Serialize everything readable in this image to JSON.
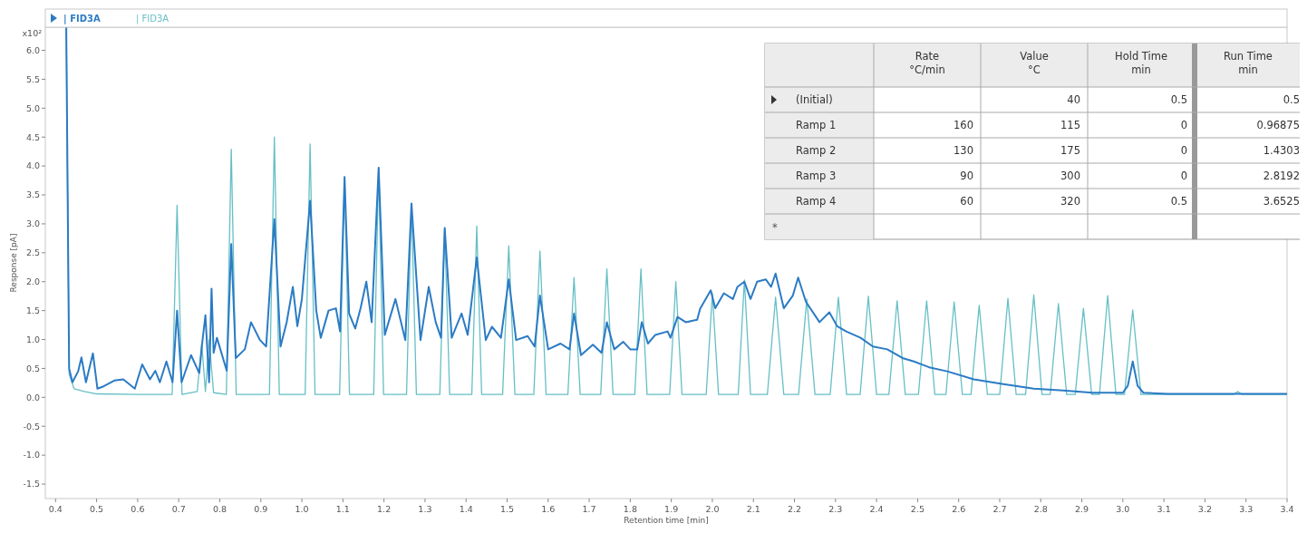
{
  "chart_data": [
    {
      "type": "line",
      "xlabel": "Retention time [min]",
      "ylabel": "Response [pA]",
      "annotations": [
        "x10²"
      ],
      "xlim": [
        0.375,
        3.4
      ],
      "ylim": [
        -1.75,
        6.4
      ],
      "xticks": [
        0.4,
        0.5,
        0.6,
        0.7,
        0.8,
        0.9,
        {
          "value": 1,
          "label": "1.0"
        },
        1.1,
        1.2,
        1.3,
        1.4,
        1.5,
        1.6,
        1.7,
        1.8,
        1.9,
        {
          "value": 2,
          "label": "2.0"
        },
        2.1,
        2.2,
        2.3,
        2.4,
        2.5,
        2.6,
        2.7,
        2.8,
        2.9,
        {
          "value": 3,
          "label": "3.0"
        },
        3.1,
        3.2,
        3.3,
        3.4
      ],
      "yticks": [
        {
          "value": -1.5,
          "label": "-1.5"
        },
        {
          "value": -1,
          "label": "-1.0"
        },
        {
          "value": -0.5,
          "label": "-0.5"
        },
        {
          "value": 0,
          "label": "0.0"
        },
        0.5,
        {
          "value": 1,
          "label": "1.0"
        },
        1.5,
        {
          "value": 2,
          "label": "2.0"
        },
        2.5,
        {
          "value": 3,
          "label": "3.0"
        },
        3.5,
        {
          "value": 4,
          "label": "4.0"
        },
        4.5,
        {
          "value": 5,
          "label": "5.0"
        },
        5.5,
        {
          "value": 6,
          "label": "6.0"
        }
      ],
      "grid": false,
      "line_style": "solid",
      "series": [
        {
          "name": "| FID3A",
          "color": "#2b7bc4",
          "x": [
            0.426,
            0.433,
            0.441,
            0.455,
            0.463,
            0.474,
            0.491,
            0.502,
            0.517,
            0.543,
            0.565,
            0.593,
            0.611,
            0.63,
            0.643,
            0.654,
            0.67,
            0.685,
            0.696,
            0.707,
            0.73,
            0.75,
            0.757,
            0.765,
            0.774,
            0.78,
            0.785,
            0.793,
            0.817,
            0.828,
            0.839,
            0.861,
            0.876,
            0.898,
            0.913,
            0.933,
            0.948,
            0.963,
            0.978,
            0.989,
            1.0,
            1.02,
            1.035,
            1.046,
            1.065,
            1.083,
            1.093,
            1.104,
            1.115,
            1.13,
            1.143,
            1.157,
            1.17,
            1.187,
            1.202,
            1.228,
            1.252,
            1.267,
            1.289,
            1.309,
            1.326,
            1.339,
            1.348,
            1.365,
            1.389,
            1.404,
            1.426,
            1.448,
            1.463,
            1.485,
            1.504,
            1.522,
            1.55,
            1.567,
            1.58,
            1.6,
            1.63,
            1.652,
            1.663,
            1.68,
            1.709,
            1.73,
            1.743,
            1.761,
            1.783,
            1.8,
            1.817,
            1.828,
            1.843,
            1.861,
            1.891,
            1.898,
            1.915,
            1.935,
            1.963,
            1.97,
            1.996,
            2.007,
            2.028,
            2.05,
            2.061,
            2.078,
            2.093,
            2.109,
            2.13,
            2.143,
            2.154,
            2.174,
            2.196,
            2.209,
            2.228,
            2.261,
            2.285,
            2.304,
            2.326,
            2.361,
            2.391,
            2.426,
            2.463,
            2.491,
            2.528,
            2.572,
            2.637,
            2.709,
            2.783,
            2.854,
            2.926,
            3.0,
            3.012,
            3.024,
            3.036,
            3.05,
            3.109,
            3.252,
            3.4
          ],
          "values": [
            6.4,
            0.5,
            0.26,
            0.45,
            0.69,
            0.26,
            0.76,
            0.15,
            0.19,
            0.29,
            0.31,
            0.15,
            0.57,
            0.31,
            0.46,
            0.26,
            0.62,
            0.26,
            1.5,
            0.26,
            0.73,
            0.42,
            0.93,
            1.42,
            0.26,
            1.88,
            0.77,
            1.03,
            0.46,
            2.65,
            0.68,
            0.83,
            1.3,
            0.99,
            0.88,
            3.08,
            0.88,
            1.3,
            1.91,
            1.23,
            1.7,
            3.4,
            1.5,
            1.03,
            1.5,
            1.54,
            1.14,
            3.81,
            1.45,
            1.19,
            1.54,
            2.0,
            1.3,
            3.97,
            1.08,
            1.7,
            0.99,
            3.35,
            0.99,
            1.91,
            1.3,
            1.03,
            2.93,
            1.03,
            1.45,
            1.08,
            2.42,
            0.99,
            1.22,
            1.03,
            2.04,
            0.99,
            1.06,
            0.88,
            1.76,
            0.83,
            0.93,
            0.83,
            1.45,
            0.73,
            0.91,
            0.77,
            1.3,
            0.83,
            0.96,
            0.83,
            0.83,
            1.3,
            0.93,
            1.08,
            1.14,
            1.03,
            1.39,
            1.3,
            1.34,
            1.53,
            1.85,
            1.54,
            1.8,
            1.7,
            1.91,
            2.0,
            1.7,
            2.0,
            2.04,
            1.91,
            2.14,
            1.54,
            1.76,
            2.07,
            1.65,
            1.3,
            1.47,
            1.23,
            1.14,
            1.03,
            0.88,
            0.83,
            0.68,
            0.62,
            0.52,
            0.45,
            0.31,
            0.23,
            0.15,
            0.12,
            0.08,
            0.08,
            0.2,
            0.62,
            0.2,
            0.08,
            0.06,
            0.06,
            0.06
          ]
        },
        {
          "name": "| FID3A",
          "color": "#66bfc6",
          "x": [
            0.426,
            0.433,
            0.445,
            0.47,
            0.5,
            0.6,
            0.684,
            0.696,
            0.708,
            0.745,
            0.756,
            0.765,
            0.774,
            0.785,
            0.816,
            0.828,
            0.84,
            0.921,
            0.933,
            0.945,
            1.008,
            1.02,
            1.032,
            1.092,
            1.104,
            1.116,
            1.175,
            1.187,
            1.199,
            1.255,
            1.267,
            1.279,
            1.336,
            1.348,
            1.36,
            1.414,
            1.426,
            1.438,
            1.489,
            1.504,
            1.519,
            1.565,
            1.58,
            1.595,
            1.648,
            1.663,
            1.678,
            1.728,
            1.743,
            1.758,
            1.811,
            1.826,
            1.841,
            1.896,
            1.911,
            1.926,
            1.985,
            2.0,
            2.015,
            2.063,
            2.078,
            2.093,
            2.134,
            2.154,
            2.174,
            2.21,
            2.23,
            2.25,
            2.287,
            2.307,
            2.327,
            2.36,
            2.38,
            2.4,
            2.43,
            2.45,
            2.47,
            2.502,
            2.522,
            2.542,
            2.569,
            2.589,
            2.609,
            2.63,
            2.65,
            2.67,
            2.7,
            2.72,
            2.74,
            2.763,
            2.783,
            2.803,
            2.823,
            2.843,
            2.863,
            2.884,
            2.904,
            2.924,
            2.943,
            2.963,
            2.983,
            3.004,
            3.024,
            3.044,
            3.27,
            3.28,
            3.29,
            3.4
          ],
          "values": [
            6.4,
            0.4,
            0.15,
            0.1,
            0.06,
            0.05,
            0.05,
            3.32,
            0.05,
            0.1,
            0.93,
            0.1,
            1.0,
            0.08,
            0.05,
            4.29,
            0.05,
            0.05,
            4.5,
            0.05,
            0.05,
            4.38,
            0.05,
            0.05,
            3.81,
            0.05,
            0.05,
            3.97,
            0.05,
            0.05,
            3.35,
            0.05,
            0.05,
            2.93,
            0.05,
            0.05,
            2.96,
            0.05,
            0.05,
            2.62,
            0.05,
            0.05,
            2.53,
            0.05,
            0.05,
            2.07,
            0.05,
            0.05,
            2.22,
            0.05,
            0.05,
            2.22,
            0.05,
            0.05,
            2.0,
            0.05,
            0.05,
            1.8,
            0.05,
            0.05,
            2.03,
            0.05,
            0.05,
            1.73,
            0.05,
            0.05,
            1.7,
            0.05,
            0.05,
            1.73,
            0.05,
            0.05,
            1.75,
            0.05,
            0.05,
            1.67,
            0.05,
            0.05,
            1.67,
            0.05,
            0.05,
            1.65,
            0.05,
            0.05,
            1.59,
            0.05,
            0.05,
            1.71,
            0.05,
            0.05,
            1.77,
            0.05,
            0.05,
            1.62,
            0.05,
            0.05,
            1.54,
            0.05,
            0.05,
            1.76,
            0.05,
            0.05,
            1.51,
            0.05,
            0.05,
            0.1,
            0.05,
            0.05
          ]
        }
      ]
    },
    {
      "type": "other",
      "categories": [
        "Rate\n°C/min",
        "Value\n°C",
        "Hold Time\nmin",
        "Run Time\nmin"
      ],
      "y_categories": [
        "(Initial)",
        "Ramp 1",
        "Ramp 2",
        "Ramp 3",
        "Ramp 4",
        null
      ],
      "cell_labels": [
        [
          null,
          "40",
          "0.5",
          "0.5"
        ],
        [
          "160",
          "115",
          "0",
          "0.96875"
        ],
        [
          "130",
          "175",
          "0",
          "1.4303"
        ],
        [
          "90",
          "300",
          "0",
          "2.8192"
        ],
        [
          "60",
          "320",
          "0.5",
          "3.6525"
        ],
        [
          null,
          null,
          null,
          null
        ]
      ],
      "annotations": [
        "*"
      ]
    }
  ]
}
